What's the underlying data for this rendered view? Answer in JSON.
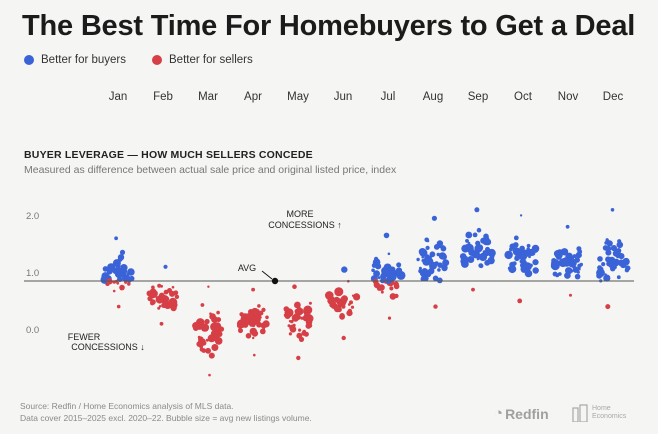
{
  "title": "The Best Time For Homebuyers to Get a Deal",
  "legend": {
    "buyers": "Better for buyers",
    "sellers": "Better for sellers"
  },
  "colors": {
    "buyers": "#3a63d8",
    "sellers": "#d63f46",
    "avg_line": "#555555"
  },
  "section": {
    "title": "BUYER LEVERAGE — HOW MUCH SELLERS CONCEDE",
    "subtitle": "Measured as difference between actual sale price and original listed price, index"
  },
  "annotations": {
    "more": [
      "MORE",
      "CONCESSIONS ↑"
    ],
    "fewer": [
      "FEWER",
      "CONCESSIONS ↓"
    ],
    "avg": "AVG"
  },
  "footer": {
    "source": "Source: Redfin / Home Economics analysis of MLS data.",
    "note": "Data cover 2015–2025 excl. 2020–22. Bubble size = avg new listings volume.",
    "brand1": "Redfin",
    "brand2a": "Home",
    "brand2b": "Economics"
  },
  "chart_data": {
    "type": "beeswarm",
    "categories": [
      "Jan",
      "Feb",
      "Mar",
      "Apr",
      "May",
      "Jun",
      "Jul",
      "Aug",
      "Sep",
      "Oct",
      "Nov",
      "Dec"
    ],
    "y_ticks": [
      "2.0",
      "1.0",
      "0.0"
    ],
    "ylim": [
      -0.8,
      2.3
    ],
    "avg": 1.0,
    "months": [
      {
        "name": "Jan",
        "center": 1.15,
        "max": 1.75,
        "min": 0.55
      },
      {
        "name": "Feb",
        "center": 0.7,
        "max": 1.25,
        "min": 0.25
      },
      {
        "name": "Mar",
        "center": 0.2,
        "max": 0.9,
        "min": -0.65
      },
      {
        "name": "Apr",
        "center": 0.3,
        "max": 0.85,
        "min": -0.3
      },
      {
        "name": "May",
        "center": 0.45,
        "max": 0.9,
        "min": -0.35
      },
      {
        "name": "Jun",
        "center": 0.85,
        "max": 1.2,
        "min": 0.0
      },
      {
        "name": "Jul",
        "center": 1.15,
        "max": 1.8,
        "min": 0.35
      },
      {
        "name": "Aug",
        "center": 1.35,
        "max": 2.1,
        "min": 0.55
      },
      {
        "name": "Sep",
        "center": 1.45,
        "max": 2.25,
        "min": 0.85
      },
      {
        "name": "Oct",
        "center": 1.35,
        "max": 2.15,
        "min": 0.65
      },
      {
        "name": "Nov",
        "center": 1.3,
        "max": 1.95,
        "min": 0.75
      },
      {
        "name": "Dec",
        "center": 1.15,
        "max": 2.25,
        "min": 0.55
      }
    ]
  }
}
